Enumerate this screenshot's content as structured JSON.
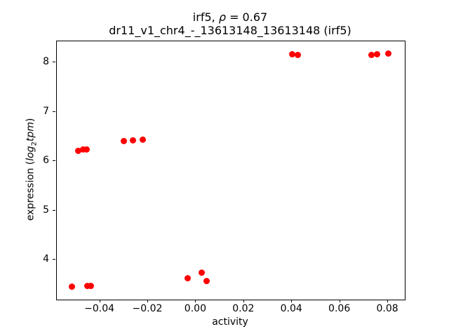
{
  "chart_data": {
    "type": "scatter",
    "title_line1": {
      "prefix": "irf5,",
      "rho": "ρ",
      "rest": "= 0.67"
    },
    "title_line2": "dr11_v1_chr4_-_13613148_13613148 (irf5)",
    "xlabel": "activity",
    "ylabel": {
      "prefix": "expression (",
      "math_log": "log",
      "math_sub": "2",
      "math_tpm": "tpm",
      "suffix": ")"
    },
    "xlim": [
      -0.058,
      0.087
    ],
    "ylim": [
      3.19,
      8.43
    ],
    "xticks": [
      -0.04,
      -0.02,
      0.0,
      0.02,
      0.04,
      0.06,
      0.08
    ],
    "xtick_labels": [
      "−0.04",
      "−0.02",
      "0.00",
      "0.02",
      "0.04",
      "0.06",
      "0.08"
    ],
    "yticks": [
      4,
      5,
      6,
      7,
      8
    ],
    "ytick_labels": [
      "4",
      "5",
      "6",
      "7",
      "8"
    ],
    "grid": false,
    "legend": null,
    "marker_color": "#ff0000",
    "marker_diameter_px": 9,
    "points": [
      {
        "x": -0.0516,
        "y": 3.45
      },
      {
        "x": -0.0452,
        "y": 3.47
      },
      {
        "x": -0.0437,
        "y": 3.47
      },
      {
        "x": -0.049,
        "y": 6.21
      },
      {
        "x": -0.047,
        "y": 6.23
      },
      {
        "x": -0.0455,
        "y": 6.24
      },
      {
        "x": -0.0302,
        "y": 6.41
      },
      {
        "x": -0.0264,
        "y": 6.42
      },
      {
        "x": -0.0223,
        "y": 6.44
      },
      {
        "x": -0.0035,
        "y": 3.62
      },
      {
        "x": 0.0023,
        "y": 3.74
      },
      {
        "x": 0.0044,
        "y": 3.56
      },
      {
        "x": 0.0402,
        "y": 8.17
      },
      {
        "x": 0.0423,
        "y": 8.16
      },
      {
        "x": 0.0731,
        "y": 8.16
      },
      {
        "x": 0.0754,
        "y": 8.17
      },
      {
        "x": 0.0801,
        "y": 8.18
      }
    ]
  }
}
